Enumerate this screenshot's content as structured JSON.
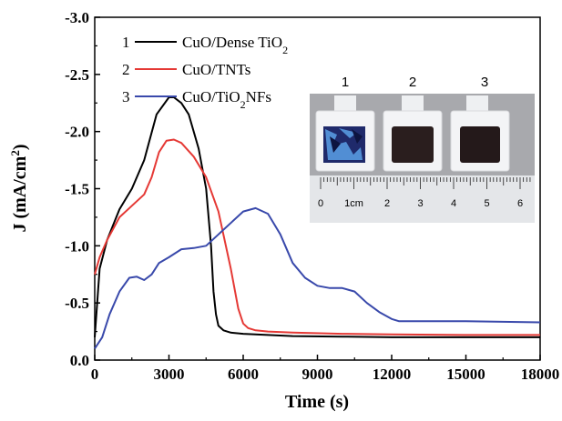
{
  "chart_data": {
    "type": "line",
    "xlabel": "Time (s)",
    "ylabel_main": "J (mA/cm",
    "ylabel_sup": "2",
    "ylabel_tail": ")",
    "xlim": [
      0,
      18000
    ],
    "ylim": [
      0.0,
      -3.0
    ],
    "xticks": [
      "0",
      "3000",
      "6000",
      "9000",
      "12000",
      "15000",
      "18000"
    ],
    "yticks": [
      "0.0",
      "-0.5",
      "-1.0",
      "-1.5",
      "-2.0",
      "-2.5",
      "-3.0"
    ],
    "legend_placement": "top-left",
    "grid": false,
    "series": [
      {
        "index": "1",
        "name": "CuO/Dense TiO",
        "name_sub": "2",
        "name_tail": "",
        "color": "#000000",
        "x": [
          0,
          200,
          500,
          1000,
          1500,
          2000,
          2500,
          3000,
          3200,
          3500,
          3800,
          4200,
          4500,
          4700,
          4800,
          4900,
          5000,
          5200,
          5500,
          6000,
          7000,
          8000,
          10000,
          12000,
          15000,
          18000
        ],
        "y": [
          -0.2,
          -0.8,
          -1.05,
          -1.32,
          -1.5,
          -1.75,
          -2.15,
          -2.3,
          -2.3,
          -2.25,
          -2.15,
          -1.85,
          -1.5,
          -1.0,
          -0.6,
          -0.4,
          -0.3,
          -0.26,
          -0.24,
          -0.23,
          -0.22,
          -0.21,
          -0.205,
          -0.2,
          -0.2,
          -0.2
        ]
      },
      {
        "index": "2",
        "name": "CuO/TNTs",
        "name_sub": "",
        "name_tail": "",
        "color": "#e53935",
        "x": [
          0,
          200,
          500,
          1000,
          1500,
          2000,
          2300,
          2600,
          2900,
          3200,
          3500,
          4000,
          4500,
          5000,
          5500,
          5800,
          6000,
          6200,
          6500,
          7000,
          8000,
          10000,
          12000,
          15000,
          18000
        ],
        "y": [
          -0.75,
          -0.9,
          -1.05,
          -1.25,
          -1.35,
          -1.45,
          -1.6,
          -1.82,
          -1.92,
          -1.93,
          -1.9,
          -1.78,
          -1.6,
          -1.3,
          -0.8,
          -0.45,
          -0.32,
          -0.28,
          -0.26,
          -0.25,
          -0.24,
          -0.23,
          -0.225,
          -0.22,
          -0.22
        ]
      },
      {
        "index": "3",
        "name": "CuO/TiO",
        "name_sub": "2",
        "name_tail": "NFs",
        "color": "#3949ab",
        "x": [
          0,
          300,
          600,
          1000,
          1400,
          1700,
          2000,
          2300,
          2600,
          3000,
          3500,
          4000,
          4500,
          5000,
          5500,
          6000,
          6500,
          7000,
          7500,
          8000,
          8500,
          9000,
          9500,
          10000,
          10500,
          11000,
          11500,
          12000,
          12300,
          13000,
          15000,
          18000
        ],
        "y": [
          -0.1,
          -0.2,
          -0.4,
          -0.6,
          -0.72,
          -0.73,
          -0.7,
          -0.75,
          -0.85,
          -0.9,
          -0.97,
          -0.98,
          -1.0,
          -1.1,
          -1.2,
          -1.3,
          -1.33,
          -1.28,
          -1.1,
          -0.85,
          -0.72,
          -0.65,
          -0.63,
          -0.63,
          -0.6,
          -0.5,
          -0.42,
          -0.36,
          -0.34,
          -0.34,
          -0.34,
          -0.33
        ]
      }
    ]
  },
  "inset": {
    "sample_labels": [
      "1",
      "2",
      "3"
    ],
    "ruler_labels": [
      "0",
      "1cm",
      "2",
      "3",
      "4",
      "5",
      "6"
    ]
  }
}
